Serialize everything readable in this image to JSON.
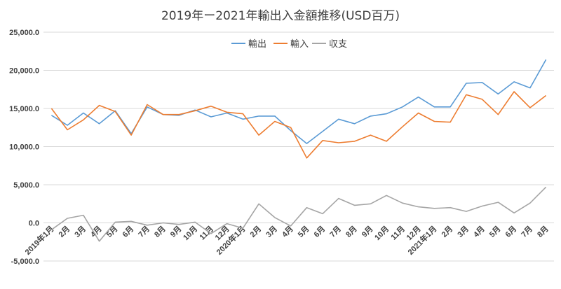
{
  "chart_data": {
    "type": "line",
    "title": "2019年ー2021年輸出入金額推移(USD百万)",
    "categories": [
      "2019年1月",
      "2月",
      "3月",
      "4月",
      "5月",
      "6月",
      "7月",
      "8月",
      "9月",
      "10月",
      "11月",
      "12月",
      "2020年1月",
      "2月",
      "3月",
      "4月",
      "5月",
      "6月",
      "7月",
      "8月",
      "9月",
      "10月",
      "11月",
      "12月",
      "2021年1月",
      "2月",
      "3月",
      "4月",
      "5月",
      "6月",
      "7月",
      "8月"
    ],
    "series": [
      {
        "name": "輸出",
        "color": "#5b9bd5",
        "values": [
          14100,
          12800,
          14400,
          13000,
          14700,
          11700,
          15200,
          14200,
          14100,
          14800,
          13900,
          14400,
          13600,
          14000,
          14000,
          12100,
          10400,
          12000,
          13600,
          13000,
          14000,
          14300,
          15200,
          16500,
          15200,
          15200,
          18300,
          18400,
          16900,
          18500,
          17700,
          21400
        ]
      },
      {
        "name": "輸入",
        "color": "#ed7d31",
        "values": [
          15000,
          12200,
          13500,
          15400,
          14600,
          11500,
          15500,
          14200,
          14200,
          14700,
          15300,
          14500,
          14300,
          11500,
          13300,
          12500,
          8500,
          10800,
          10500,
          10700,
          11500,
          10700,
          12600,
          14400,
          13300,
          13200,
          16800,
          16200,
          14200,
          17200,
          15100,
          16700
        ]
      },
      {
        "name": "収支",
        "color": "#a5a5a5",
        "values": [
          -900,
          600,
          1000,
          -2400,
          100,
          200,
          -300,
          0,
          -200,
          100,
          -1400,
          -100,
          -700,
          2500,
          700,
          -400,
          2000,
          1200,
          3200,
          2300,
          2500,
          3600,
          2600,
          2100,
          1900,
          2000,
          1500,
          2200,
          2700,
          1300,
          2600,
          4700
        ]
      }
    ],
    "y_ticks": [
      "25,000.0",
      "20,000.0",
      "15,000.0",
      "10,000.0",
      "5,000.0",
      "0.0",
      "-5,000.0"
    ],
    "y_tick_values": [
      25000,
      20000,
      15000,
      10000,
      5000,
      0,
      -5000
    ],
    "negative_tick_color": "#c00000",
    "ylim": [
      -5000,
      25000
    ],
    "grid": true,
    "legend_position": "top-center"
  }
}
